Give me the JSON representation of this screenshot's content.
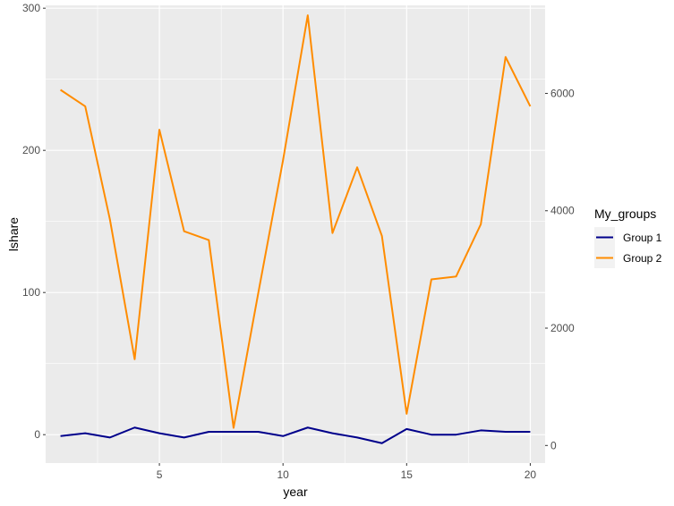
{
  "chart_data": {
    "type": "line",
    "title": "",
    "xlabel": "year",
    "ylabel": "lshare",
    "y2label": "",
    "xlim": [
      0.4,
      20.6
    ],
    "ylim": [
      -20,
      302
    ],
    "y2lim": [
      -300,
      7500
    ],
    "xticks": [
      5,
      10,
      15,
      20
    ],
    "yticks": [
      0,
      100,
      200,
      300
    ],
    "y2ticks": [
      0,
      2000,
      4000,
      6000
    ],
    "grid": true,
    "legend": {
      "title": "My_groups",
      "position": "right"
    },
    "x": [
      1,
      2,
      3,
      4,
      5,
      6,
      7,
      8,
      9,
      10,
      11,
      12,
      13,
      14,
      15,
      16,
      17,
      18,
      19,
      20
    ],
    "series": [
      {
        "name": "Group 1",
        "axis": "left",
        "color": "#00008b",
        "values": [
          -1,
          1,
          -2,
          5,
          1,
          -2,
          2,
          2,
          2,
          -1,
          5,
          1,
          -2,
          -6,
          4,
          0,
          0,
          3,
          2,
          2
        ]
      },
      {
        "name": "Group 2",
        "axis": "right",
        "color": "#ff8c00",
        "values": [
          6060,
          5780,
          3850,
          1470,
          5380,
          3650,
          3500,
          300,
          2600,
          4860,
          7330,
          3620,
          4740,
          3570,
          540,
          2830,
          2880,
          3770,
          6620,
          5780
        ]
      }
    ]
  }
}
